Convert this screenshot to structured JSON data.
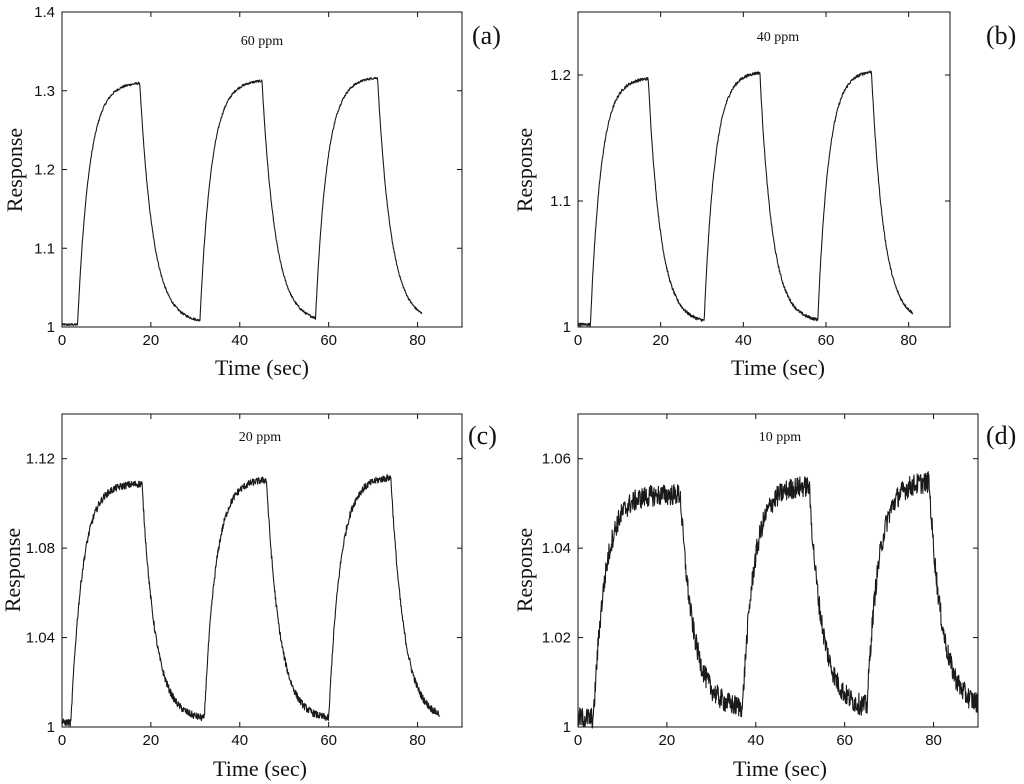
{
  "chart_data": [
    {
      "type": "line",
      "panel": "(a)",
      "title": "60 ppm",
      "xlabel": "Time (sec)",
      "ylabel": "Response",
      "xlim": [
        0,
        90
      ],
      "ylim": [
        1.0,
        1.4
      ],
      "xticks": [
        0,
        20,
        40,
        60,
        80
      ],
      "yticks": [
        1.0,
        1.1,
        1.2,
        1.3,
        1.4
      ],
      "ytick_labels": [
        "1",
        "1.1",
        "1.2",
        "1.3",
        "1.4"
      ],
      "series": [
        {
          "name": "Response",
          "t_end": 81,
          "cycles": [
            {
              "on": 3.5,
              "off": 17.5,
              "next": 31,
              "base": 1.003,
              "peak": 1.311
            },
            {
              "on": 31,
              "off": 45,
              "next": 57,
              "base": 1.005,
              "peak": 1.314
            },
            {
              "on": 57,
              "off": 71,
              "next": 81,
              "base": 1.006,
              "peak": 1.318
            }
          ],
          "noise": 0.0015
        }
      ]
    },
    {
      "type": "line",
      "panel": "(b)",
      "title": "40 ppm",
      "xlabel": "Time (sec)",
      "ylabel": "Response",
      "xlim": [
        0,
        90
      ],
      "ylim": [
        1.0,
        1.25
      ],
      "xticks": [
        0,
        20,
        40,
        60,
        80
      ],
      "yticks": [
        1.0,
        1.1,
        1.2
      ],
      "ytick_labels": [
        "1",
        "1.1",
        "1.2"
      ],
      "series": [
        {
          "name": "Response",
          "t_end": 81,
          "cycles": [
            {
              "on": 3,
              "off": 17,
              "next": 30.5,
              "base": 1.002,
              "peak": 1.198
            },
            {
              "on": 30.5,
              "off": 44,
              "next": 58,
              "base": 1.003,
              "peak": 1.203
            },
            {
              "on": 58,
              "off": 71,
              "next": 81,
              "base": 1.004,
              "peak": 1.204
            }
          ],
          "noise": 0.0012
        }
      ]
    },
    {
      "type": "line",
      "panel": "(c)",
      "title": "20 ppm",
      "xlabel": "Time (sec)",
      "ylabel": "Response",
      "xlim": [
        0,
        90
      ],
      "ylim": [
        1.0,
        1.14
      ],
      "xticks": [
        0,
        20,
        40,
        60,
        80
      ],
      "yticks": [
        1.0,
        1.04,
        1.08,
        1.12
      ],
      "ytick_labels": [
        "1",
        "1.04",
        "1.08",
        "1.12"
      ],
      "series": [
        {
          "name": "Response",
          "t_end": 85,
          "cycles": [
            {
              "on": 2,
              "off": 18,
              "next": 32,
              "base": 1.002,
              "peak": 1.109
            },
            {
              "on": 32,
              "off": 46,
              "next": 60,
              "base": 1.003,
              "peak": 1.111
            },
            {
              "on": 60,
              "off": 74,
              "next": 85,
              "base": 1.003,
              "peak": 1.112
            }
          ],
          "noise": 0.0016
        }
      ]
    },
    {
      "type": "line",
      "panel": "(d)",
      "title": "10 ppm",
      "xlabel": "Time (sec)",
      "ylabel": "Response",
      "xlim": [
        0,
        90
      ],
      "ylim": [
        1.0,
        1.07
      ],
      "xticks": [
        0,
        20,
        40,
        60,
        80
      ],
      "yticks": [
        1.0,
        1.02,
        1.04,
        1.06
      ],
      "ytick_labels": [
        "1",
        "1.02",
        "1.04",
        "1.06"
      ],
      "series": [
        {
          "name": "Response",
          "t_end": 90,
          "cycles": [
            {
              "on": 3.5,
              "off": 23,
              "next": 37,
              "base": 1.002,
              "peak": 1.052
            },
            {
              "on": 37,
              "off": 52,
              "next": 65,
              "base": 1.004,
              "peak": 1.054
            },
            {
              "on": 65,
              "off": 79,
              "next": 90,
              "base": 1.004,
              "peak": 1.055
            }
          ],
          "noise": 0.0024
        }
      ]
    }
  ]
}
